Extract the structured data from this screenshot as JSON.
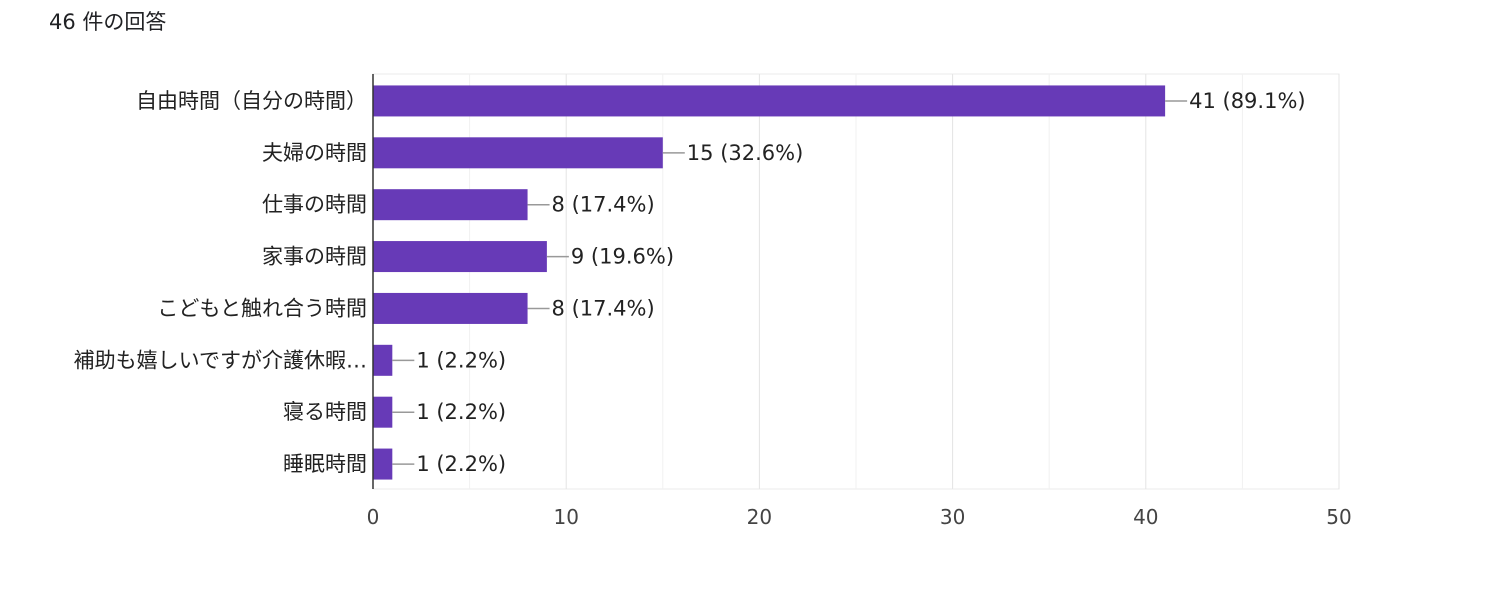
{
  "header": {
    "response_count": "46 件の回答"
  },
  "chart_data": {
    "type": "bar",
    "orientation": "horizontal",
    "categories": [
      "自由時間（自分の時間）",
      "夫婦の時間",
      "仕事の時間",
      "家事の時間",
      "こどもと触れ合う時間",
      "補助も嬉しいですが介護休暇…",
      "寝る時間",
      "睡眠時間"
    ],
    "values": [
      41,
      15,
      8,
      9,
      8,
      1,
      1,
      1
    ],
    "data_labels": [
      "41 (89.1%)",
      "15 (32.6%)",
      "8 (17.4%)",
      "9 (19.6%)",
      "8 (17.4%)",
      "1 (2.2%)",
      "1 (2.2%)",
      "1 (2.2%)"
    ],
    "xlim": [
      0,
      50
    ],
    "xticks": [
      0,
      10,
      20,
      30,
      40,
      50
    ],
    "grid": true,
    "bar_color": "#673ab7",
    "title": "",
    "xlabel": "",
    "ylabel": ""
  }
}
